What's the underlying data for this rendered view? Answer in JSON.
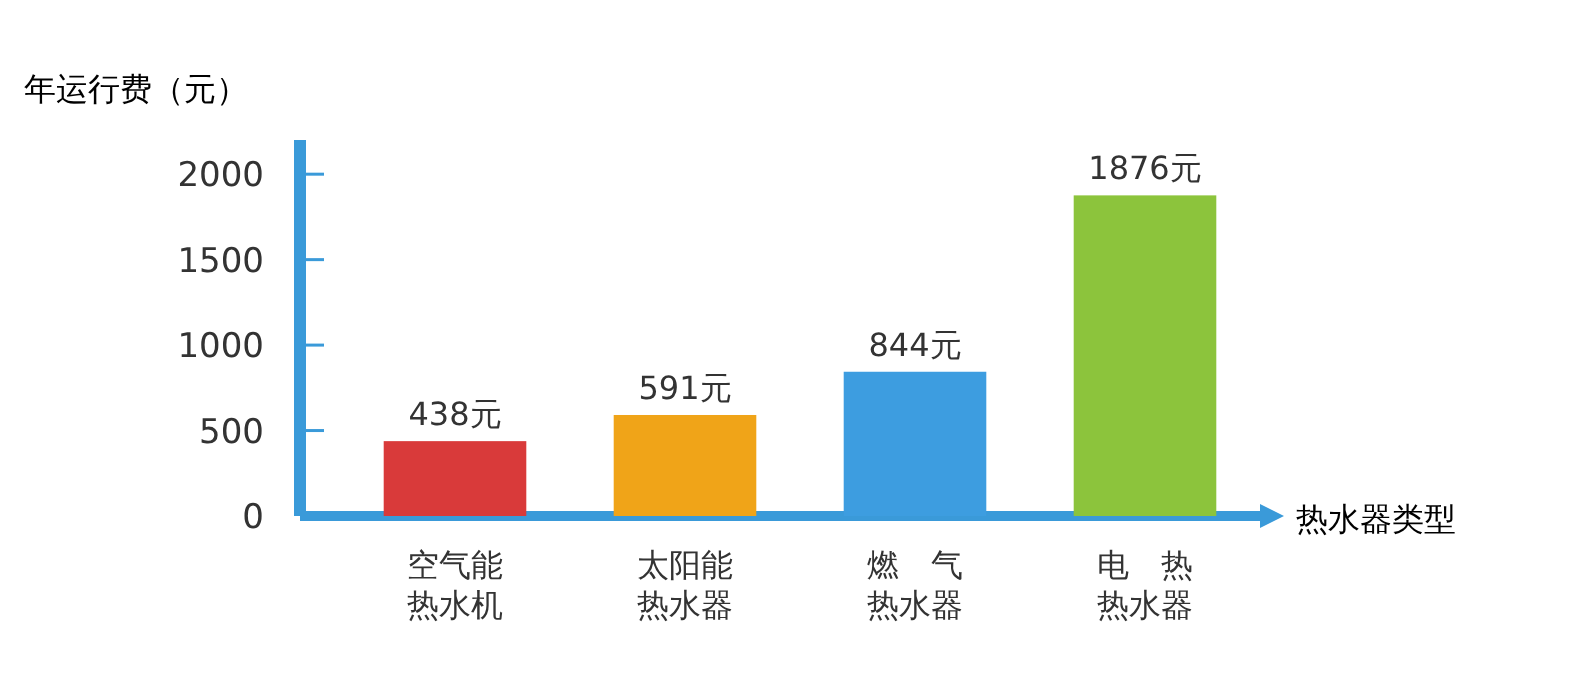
{
  "chart_data": {
    "type": "bar",
    "ylabel": "年运行费（元）",
    "xlabel": "热水器类型",
    "categories": [
      "空气能热水机",
      "太阳能热水器",
      "燃　气热水器",
      "电　热热水器"
    ],
    "values": [
      438,
      591,
      844,
      1876
    ],
    "colors": [
      "#d93a3a",
      "#f0a418",
      "#3d9de0",
      "#8cc43c"
    ],
    "value_labels": [
      "438元",
      "591元",
      "844元",
      "1876元"
    ],
    "ylim": [
      0,
      2200
    ],
    "yticks": [
      0,
      500,
      1000,
      1500,
      2000
    ]
  }
}
